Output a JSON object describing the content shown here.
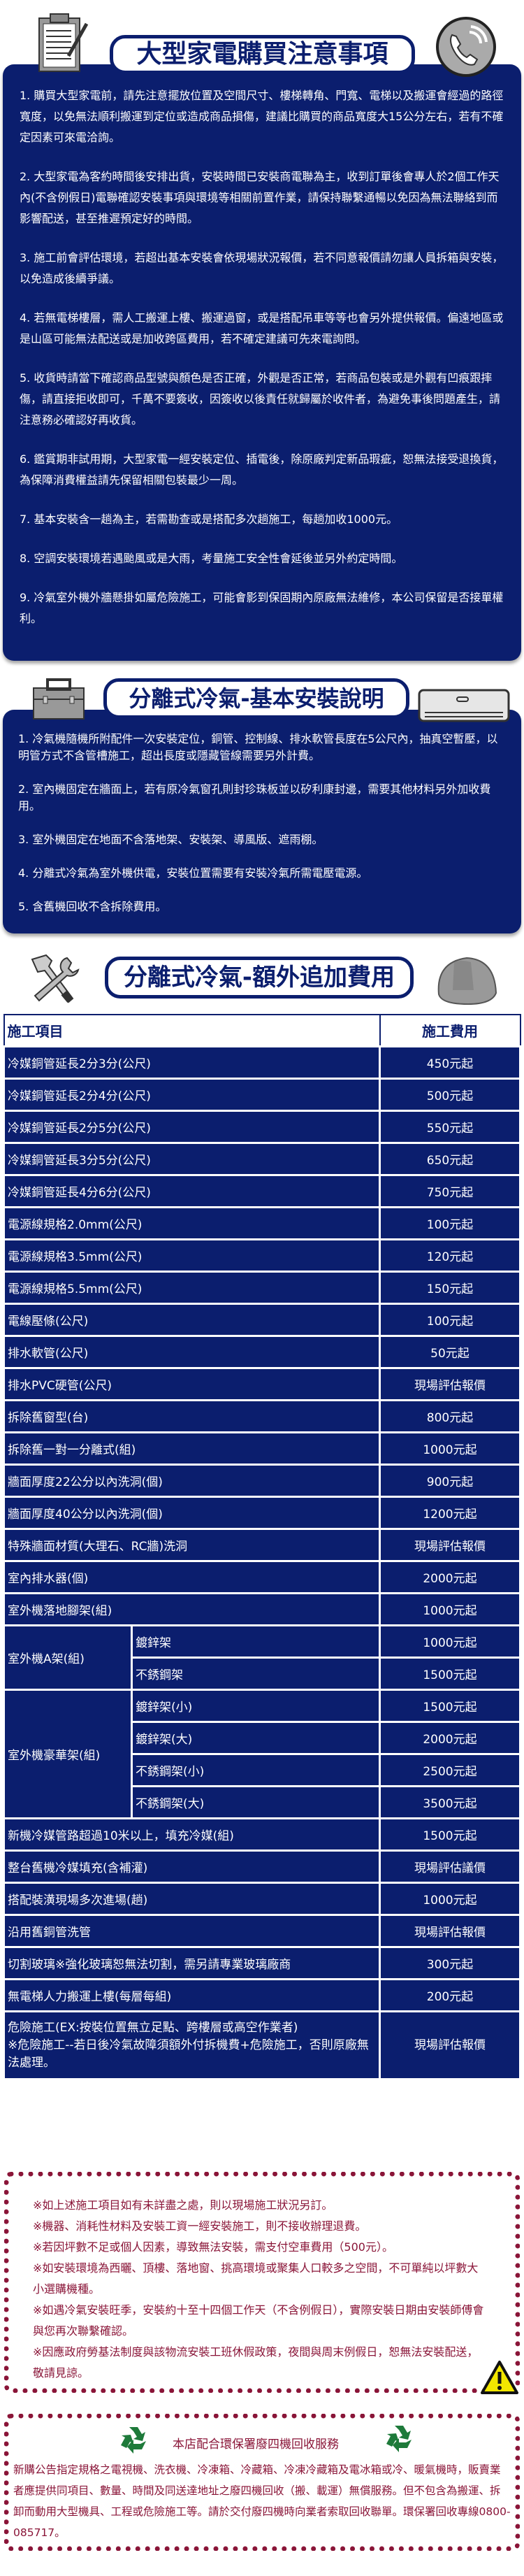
{
  "notice": {
    "title": "大型家電購買注意事項",
    "icons": {
      "left": "clipboard-icon",
      "right": "phone-icon"
    },
    "items": [
      "1. 購買大型家電前，請先注意擺放位置及空間尺寸、樓梯轉角、門寬、電梯以及搬運會經過的路徑寬度，以免無法順利搬運到定位或造成商品損傷，建議比購買的商品寬度大15公分左右，若有不確定因素可來電洽詢。",
      "2. 大型家電為客約時間後安排出貨，安裝時間已安裝商電聯為主，收到訂單後會專人於2個工作天內(不含例假日)電聯確認安裝事項與環境等相關前置作業，請保持聯繫通暢以免因為無法聯絡到而影響配送，甚至推遲預定好的時間。",
      "3. 施工前會評估環境，若超出基本安裝會依現場狀況報價，若不同意報價請勿讓人員拆箱與安裝，以免造成後續爭議。",
      "4. 若無電梯樓層，需人工搬運上樓、搬運過窗，或是搭配吊車等等也會另外提供報價。偏遠地區或是山區可能無法配送或是加收跨區費用，若不確定建議可先來電詢問。",
      "5. 收貨時請當下確認商品型號與顏色是否正確，外觀是否正常，若商品包裝或是外觀有凹痕跟摔傷，請直接拒收即可，千萬不要簽收，因簽收以後責任就歸屬於收件者，為避免事後問題產生，請注意務必確認好再收貨。",
      "6. 鑑賞期非試用期，大型家電一經安裝定位、插電後，除原廠判定新品瑕疵，恕無法接受退換貨，為保障消費權益請先保留相關包裝最少一周。",
      "7. 基本安裝含一趟為主，若需勘查或是搭配多次趟施工，每趟加收1000元。",
      "8. 空調安裝環境若遇颱風或是大雨，考量施工安全性會延後並另外約定時間。",
      "9. 冷氣室外機外牆懸掛如屬危險施工，可能會影到保固期內原廠無法維修，本公司保留是否接單權利。"
    ]
  },
  "basic": {
    "title": "分離式冷氣-基本安裝說明",
    "icons": {
      "left": "toolbox-icon",
      "right": "air-conditioner-icon"
    },
    "items": [
      "1. 冷氣機隨機所附配件一次安裝定位，銅管、控制線、排水軟管長度在5公尺內，抽真空暫壓，以明管方式不含管槽施工，超出長度或隱藏管線需要另外計費。",
      "2. 室內機固定在牆面上，若有原冷氣窗孔則封珍珠板並以矽利康封邊，需要其他材料另外加收費用。",
      "3. 室外機固定在地面不含落地架、安裝架、導風版、遮雨棚。",
      "4. 分離式冷氣為室外機供電，安裝位置需要有安裝冷氣所需電壓電源。",
      "5. 含舊機回收不含拆除費用。"
    ]
  },
  "extra": {
    "title": "分離式冷氣-額外追加費用",
    "icons": {
      "left": "tools-icon",
      "right": "hard-hat-icon"
    },
    "header": {
      "item": "施工項目",
      "fee": "施工費用"
    },
    "rows": [
      {
        "item": "冷媒銅管延長2分3分(公尺)",
        "fee": "450元起"
      },
      {
        "item": "冷媒銅管延長2分4分(公尺)",
        "fee": "500元起"
      },
      {
        "item": "冷媒銅管延長2分5分(公尺)",
        "fee": "550元起"
      },
      {
        "item": "冷媒銅管延長3分5分(公尺)",
        "fee": "650元起"
      },
      {
        "item": "冷媒銅管延長4分6分(公尺)",
        "fee": "750元起"
      },
      {
        "item": "電源線規格2.0mm(公尺)",
        "fee": "100元起"
      },
      {
        "item": "電源線規格3.5mm(公尺)",
        "fee": "120元起"
      },
      {
        "item": "電源線規格5.5mm(公尺)",
        "fee": "150元起"
      },
      {
        "item": "電線壓條(公尺)",
        "fee": "100元起"
      },
      {
        "item": "排水軟管(公尺)",
        "fee": "50元起"
      },
      {
        "item": "排水PVC硬管(公尺)",
        "fee": "現場評估報價"
      },
      {
        "item": "拆除舊窗型(台)",
        "fee": "800元起"
      },
      {
        "item": "拆除舊一對一分離式(組)",
        "fee": "1000元起"
      },
      {
        "item": "牆面厚度22公分以內洗洞(個)",
        "fee": "900元起"
      },
      {
        "item": "牆面厚度40公分以內洗洞(個)",
        "fee": "1200元起"
      },
      {
        "item": "特殊牆面材質(大理石、RC牆)洗洞",
        "fee": "現場評估報價"
      },
      {
        "item": "室內排水器(個)",
        "fee": "2000元起"
      },
      {
        "item": "室外機落地腳架(組)",
        "fee": "1000元起"
      },
      {
        "group": "室外機A架(組)",
        "sub": [
          {
            "item": "鍍鋅架",
            "fee": "1000元起"
          },
          {
            "item": "不銹鋼架",
            "fee": "1500元起"
          }
        ]
      },
      {
        "group": "室外機豪華架(組)",
        "sub": [
          {
            "item": "鍍鋅架(小)",
            "fee": "1500元起"
          },
          {
            "item": "鍍鋅架(大)",
            "fee": "2000元起"
          },
          {
            "item": "不銹鋼架(小)",
            "fee": "2500元起"
          },
          {
            "item": "不銹鋼架(大)",
            "fee": "3500元起"
          }
        ]
      },
      {
        "item": "新機冷媒管路超過10米以上，填充冷媒(組)",
        "fee": "1500元起"
      },
      {
        "item": "整台舊機冷媒填充(含補灌)",
        "fee": "現場評估議價"
      },
      {
        "item": "搭配裝潢現場多次進場(趟)",
        "fee": "1000元起"
      },
      {
        "item": "沿用舊銅管洗管",
        "fee": "現場評估報價"
      },
      {
        "item": "切割玻璃※強化玻璃恕無法切割，需另請專業玻璃廠商",
        "fee": "300元起"
      },
      {
        "item": "無電梯人力搬運上樓(每層每組)",
        "fee": "200元起"
      },
      {
        "item": "危險施工(EX:按裝位置無立足點、跨樓層或高空作業者)\n※危險施工--若日後冷氣故障須額外付拆機費+危險施工，否則原廠無法處理。",
        "fee": "現場評估報價",
        "tall": true
      }
    ]
  },
  "notes": {
    "lines": [
      "※如上述施工項目如有未詳盡之處，則以現場施工狀況另訂。",
      "※機器、消耗性材料及安裝工資一經安裝施工，則不接收辦理退費。",
      "※若因坪數不足或個人因素，導致無法安裝，需支付空車費用（500元）。",
      "※如安裝環境為西曬、頂樓、落地窗、挑高環境或聚集人口較多之空間，不可單純以坪數大小選購機種。",
      "※如遇冷氣安裝旺季，安裝約十至十四個工作天（不含例假日），實際安裝日期由安裝師傅會與您再次聯繫確認。",
      "※因應政府勞基法制度與該物流安裝工班休假政策，夜間與周末例假日，恕無法安裝配送，敬請見諒。"
    ],
    "icon": "warning-icon"
  },
  "recycle": {
    "title": "本店配合環保署廢四機回收服務",
    "text": "新購公告指定規格之電視機、洗衣機、冷凍箱、冷藏箱、冷凍冷藏箱及電冰箱或冷、暖氣機時，販賣業者應提供同項目、數量、時間及同送達地址之廢四機回收（搬、載運）無償服務。但不包含為搬運、拆卸而動用大型機具、工程或危險施工等。請於交付廢四機時向業者索取回收聯單。環保署回收專線0800-085717。",
    "icon": "recycle-icon"
  },
  "colors": {
    "navy": "#0b1e6e",
    "maroon": "#8a1538",
    "recycle_green": "#1e7a3a",
    "warning_yellow": "#f2e600"
  }
}
